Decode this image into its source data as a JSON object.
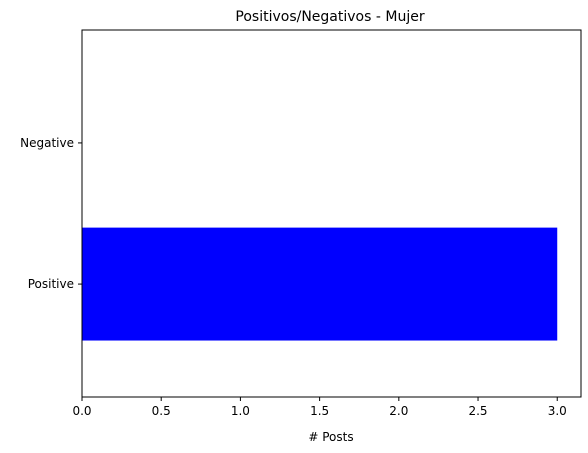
{
  "chart_data": {
    "type": "bar",
    "orientation": "horizontal",
    "title": "Positivos/Negativos - Mujer",
    "xlabel": "# Posts",
    "ylabel": "",
    "categories": [
      "Positive",
      "Negative"
    ],
    "values": [
      3,
      0
    ],
    "bar_color": "#0000ff",
    "xlim": [
      0,
      3.15
    ],
    "x_ticks": [
      "0.0",
      "0.5",
      "1.0",
      "1.5",
      "2.0",
      "2.5",
      "3.0"
    ],
    "grid": false,
    "legend": "none"
  }
}
